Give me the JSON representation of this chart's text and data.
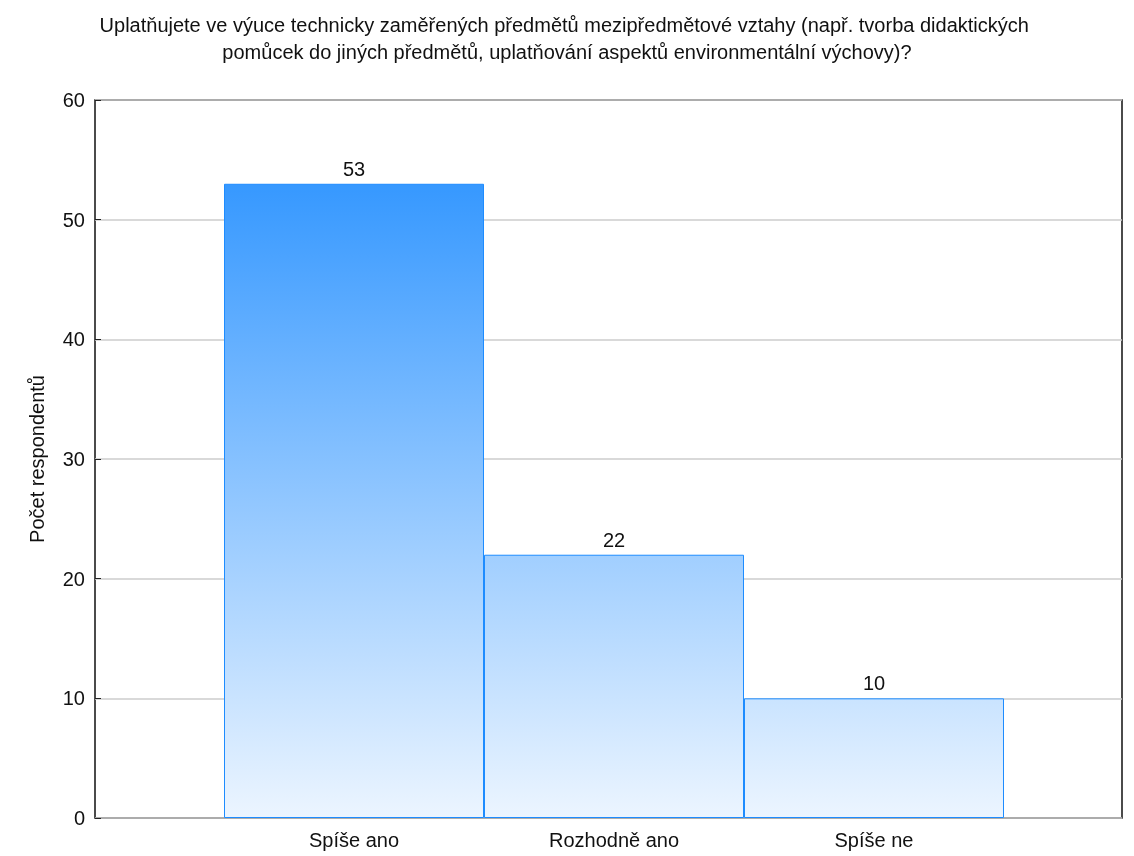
{
  "chart_data": {
    "type": "bar",
    "title": "Uplatňujete ve výuce technicky zaměřených předmětů mezipředmětové vztahy (např. tvorba didaktických pomůcek do jiných předmětů, uplatňování aspektů environmentální výchovy)?",
    "ylabel": "Počet respondentů",
    "categories": [
      "Spíše ano",
      "Rozhodně ano",
      "Spíše ne"
    ],
    "values": [
      53,
      22,
      10
    ],
    "color": "#1e8cff",
    "ylim": [
      0,
      60
    ],
    "yticks": [
      0,
      10,
      20,
      30,
      40,
      50,
      60
    ],
    "grid": "y",
    "data_labels": true
  }
}
